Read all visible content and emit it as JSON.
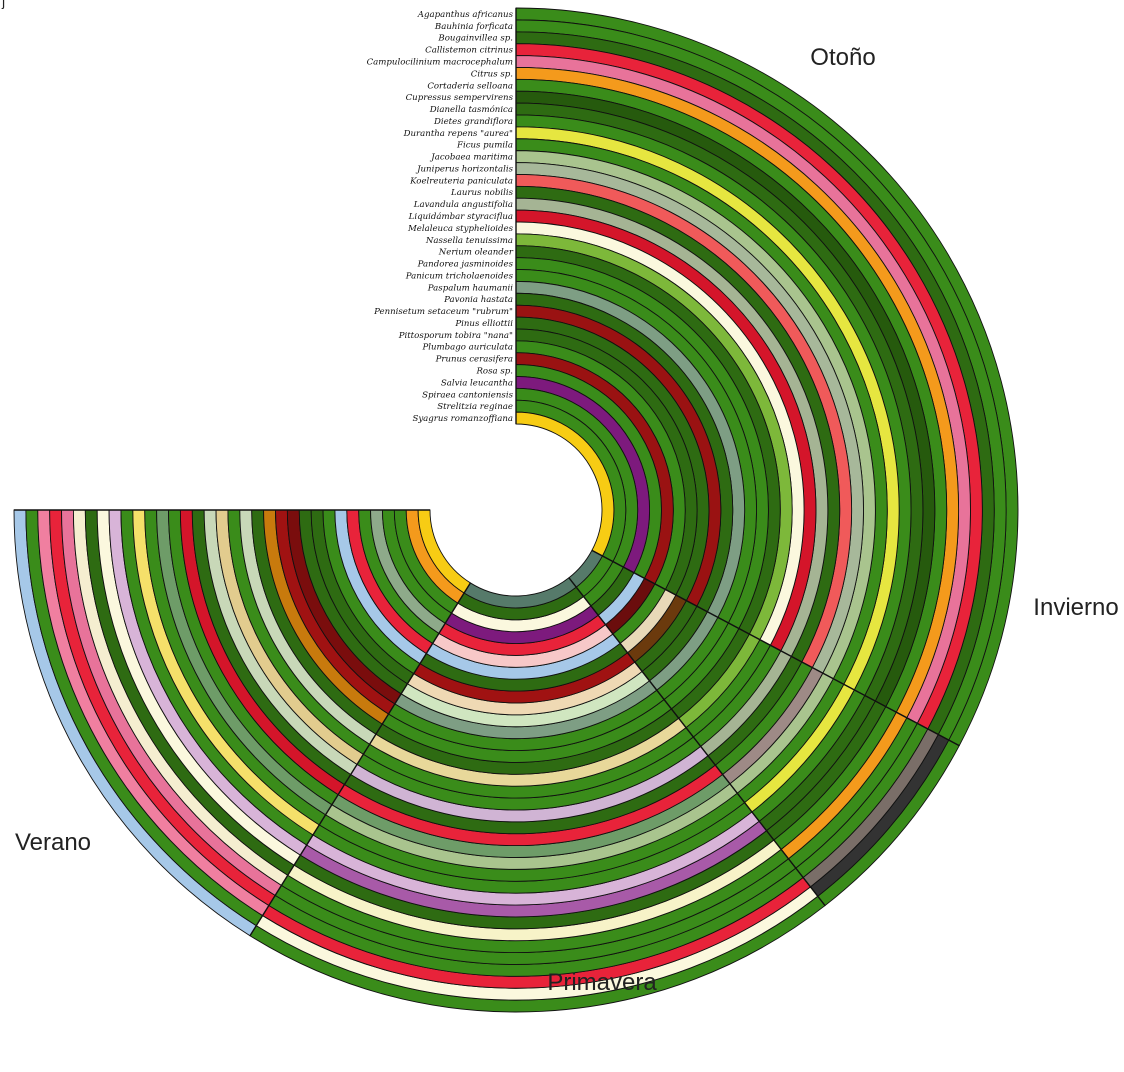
{
  "chart_data": {
    "type": "radial-stacked-rings",
    "corner_text": "j",
    "seasons": [
      "Otoño",
      "Invierno",
      "Primavera",
      "Verano"
    ],
    "species": [
      "Agapanthus africanus",
      "Bauhinia forficata",
      "Bougainvillea sp.",
      "Callistemon citrinus",
      "Campulocilinium macrocephalum",
      "Citrus sp.",
      "Cortaderia selloana",
      "Cupressus sempervirens",
      "Dianella tasmónica",
      "Dietes grandiflora",
      "Durantha repens \"aurea\"",
      "Ficus pumila",
      "Jacobaea maritima",
      "Juniperus horizontalis",
      "Koelreuteria paniculata",
      "Laurus nobilis",
      "Lavandula angustifolia",
      "Liquidámbar styraciflua",
      "Melaleuca styphelioides",
      "Nassella tenuissima",
      "Nerium oleander",
      "Pandorea jasminoides",
      "Panicum tricholaenoides",
      "Paspalum haumanii",
      "Pavonia hastata",
      "Pennisetum setaceum \"rubrum\"",
      "Pinus elliottii",
      "Pittosporum tobira \"nana\"",
      "Plumbago auriculata",
      "Prunus cerasifera",
      "Rosa sp.",
      "Salvia leucantha",
      "Spiraea cantoniensis",
      "Strelitzia reginae",
      "Syagrus romanzoffiana"
    ],
    "season_colors": {
      "Otoño": [
        "#3a8c1a",
        "#3a8c1a",
        "#2e6b12",
        "#e8233a",
        "#e8739a",
        "#f49a1c",
        "#3a8c1a",
        "#265a0d",
        "#2e6b12",
        "#3a8c1a",
        "#e6e640",
        "#3a8c1a",
        "#a9c48e",
        "#a7b89a",
        "#f05a5a",
        "#2e6b12",
        "#a5b494",
        "#d4152a",
        "#fbf8de",
        "#7db83a",
        "#2e6b12",
        "#3a8c1a",
        "#3a8c1a",
        "#7e9e84",
        "#2e6b12",
        "#9a1212",
        "#2e6b12",
        "#2e6b12",
        "#3a8c1a",
        "#9a1212",
        "#3a8c1a",
        "#7d1a7d",
        "#3a8c1a",
        "#3a8c1a",
        "#f7cc14"
      ],
      "Invierno": [
        "#3a8c1a",
        "#333333",
        "#7a6e68",
        "#3a8c1a",
        "#3a8c1a",
        "#f49a1c",
        "#3a8c1a",
        "#2e6b12",
        "#2e6b12",
        "#3a8c1a",
        "#e6e640",
        "#3a8c1a",
        "#a9c48e",
        "#9e8a86",
        "#3a8c1a",
        "#2e6b12",
        "#a5b494",
        "#3a8c1a",
        "#3a8c1a",
        "#7db83a",
        "#2e6b12",
        "#3a8c1a",
        "#3a8c1a",
        "#7e9e84",
        "#2e6b12",
        "#2e6b12",
        "#6b3a0d",
        "#e8d9b8",
        "#3a8c1a",
        "#6b0d0d",
        "#a6c8e8",
        "#2e6b12",
        "#3a8c1a",
        "#3a8c1a",
        "#567a6a"
      ],
      "Primavera": [
        "#3a8c1a",
        "#fbf8de",
        "#e8233a",
        "#3a8c1a",
        "#3a8c1a",
        "#3a8c1a",
        "#f7f3c8",
        "#2e6b12",
        "#a85aa8",
        "#d8b4d8",
        "#3a8c1a",
        "#3a8c1a",
        "#a9c48e",
        "#6e9c68",
        "#e8233a",
        "#2e6b12",
        "#d0b4d4",
        "#3a8c1a",
        "#3a8c1a",
        "#e8d89a",
        "#2e6b12",
        "#3a8c1a",
        "#3a8c1a",
        "#7e9e84",
        "#d0e6c0",
        "#efd9b4",
        "#a01212",
        "#2e6b12",
        "#a6c8e8",
        "#f7c8c8",
        "#e8233a",
        "#7d1a7d",
        "#fbf8de",
        "#2e6b12",
        "#567a6a"
      ],
      "Verano": [
        "#a6c8e8",
        "#3a8c1a",
        "#f07fa0",
        "#e8233a",
        "#e8739a",
        "#f5eed0",
        "#2e6b12",
        "#fbf8de",
        "#d8b4d8",
        "#3a8c1a",
        "#f5e06a",
        "#3a8c1a",
        "#6e9c68",
        "#3a8c1a",
        "#d4152a",
        "#2e6b12",
        "#c8d8b8",
        "#e2cc8e",
        "#3a8c1a",
        "#c8d8b8",
        "#2e6b12",
        "#c87a0d",
        "#a01212",
        "#7a0d0d",
        "#2e6b12",
        "#2e6b12",
        "#3a8c1a",
        "#a6c8e8",
        "#e8233a",
        "#3a8c1a",
        "#8eaa8a",
        "#3a8c1a",
        "#3a8c1a",
        "#f49a1c",
        "#f7cc14"
      ]
    }
  }
}
